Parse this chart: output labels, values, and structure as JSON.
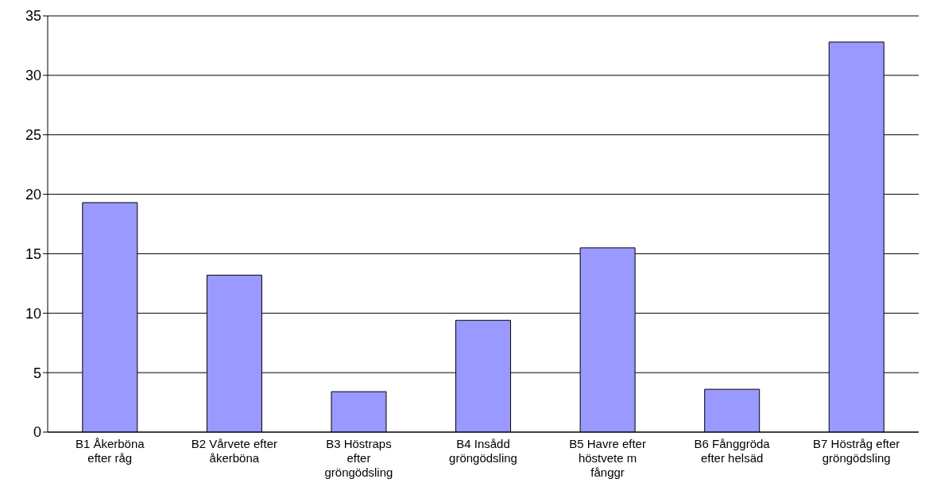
{
  "chart_data": {
    "type": "bar",
    "categories": [
      "B1 Åkerböna efter råg",
      "B2 Vårvete efter åkerböna",
      "B3 Höstraps efter gröngödsling",
      "B4 Insådd gröngödsling",
      "B5 Havre efter höstvete m fånggr",
      "B6 Fånggröda efter helsäd",
      "B7 Höstråg efter gröngödsling"
    ],
    "values": [
      19.3,
      13.2,
      3.4,
      9.4,
      15.5,
      3.6,
      32.8
    ],
    "color": "#9999ff",
    "ylim": [
      0,
      35
    ],
    "yticks": [
      0,
      5,
      10,
      15,
      20,
      25,
      30,
      35
    ],
    "grid": "y",
    "legend": false
  }
}
